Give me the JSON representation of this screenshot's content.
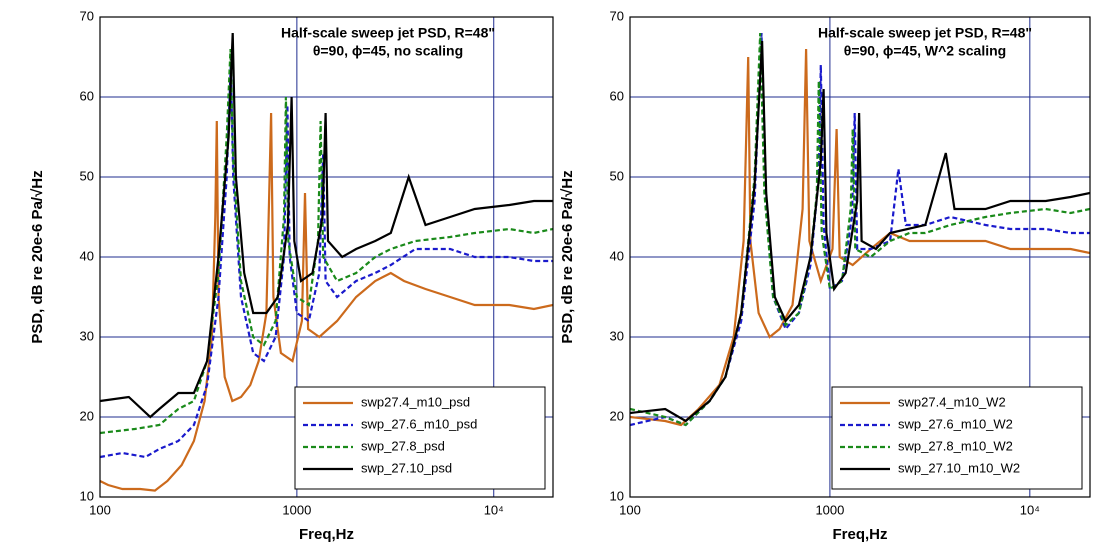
{
  "chart_data": [
    {
      "type": "line",
      "title": "Half-scale sweep jet PSD, R=48\"",
      "subtitle": "θ=90, ϕ=45,  no scaling",
      "xlabel": "Freq,Hz",
      "ylabel": "PSD, dB re 20e-6 Pa/√Hz",
      "xscale": "log",
      "grid": true,
      "legend": "lower right",
      "xlim": [
        100,
        20000
      ],
      "ylim": [
        10,
        70
      ],
      "xticks": [
        100,
        1000,
        {
          "value": 10000,
          "label": "10⁴"
        }
      ],
      "yticks": [
        10,
        20,
        30,
        40,
        50,
        60,
        70
      ],
      "series": [
        {
          "name": "swp27.4_m10_psd",
          "color": "#cc6a1c",
          "dashed": false,
          "x": [
            100,
            110,
            130,
            160,
            190,
            220,
            260,
            300,
            340,
            370,
            385,
            392,
            400,
            430,
            470,
            520,
            580,
            640,
            700,
            740,
            760,
            830,
            950,
            1060,
            1100,
            1140,
            1300,
            1600,
            2000,
            2500,
            3000,
            3500,
            4500,
            6000,
            8000,
            12000,
            16000,
            20000
          ],
          "values": [
            12,
            11.5,
            11,
            11,
            10.8,
            12,
            14,
            17,
            22,
            30,
            45,
            57,
            35,
            25,
            22,
            22.5,
            24,
            27,
            33,
            58,
            35,
            28,
            27,
            32,
            48,
            31,
            30,
            32,
            35,
            37,
            38,
            37,
            36,
            35,
            34,
            34,
            33.5,
            34
          ]
        },
        {
          "name": "swp_27.6_m10_psd",
          "color": "#1a1acc",
          "dashed": true,
          "x": [
            100,
            130,
            170,
            200,
            250,
            300,
            350,
            400,
            440,
            462,
            475,
            520,
            600,
            680,
            780,
            860,
            895,
            920,
            1000,
            1150,
            1300,
            1360,
            1400,
            1600,
            2000,
            2500,
            3000,
            4000,
            6000,
            8000,
            12000,
            16000,
            20000
          ],
          "values": [
            15,
            15.5,
            15,
            16,
            17,
            19,
            24,
            35,
            50,
            64,
            50,
            35,
            28,
            27,
            30,
            40,
            59,
            40,
            33,
            32,
            38,
            53,
            37,
            35,
            37,
            38,
            39,
            41,
            41,
            40,
            40,
            39.5,
            39.5
          ]
        },
        {
          "name": "swp_27.8_psd",
          "color": "#1a8a1a",
          "dashed": true,
          "x": [
            100,
            150,
            200,
            250,
            300,
            350,
            400,
            440,
            460,
            475,
            520,
            600,
            680,
            780,
            860,
            880,
            905,
            1000,
            1150,
            1280,
            1320,
            1360,
            1600,
            2000,
            2500,
            3000,
            4000,
            6000,
            8000,
            12000,
            16000,
            20000
          ],
          "values": [
            18,
            18.5,
            19,
            21,
            22,
            27,
            38,
            55,
            66,
            52,
            37,
            30,
            29,
            32,
            45,
            60,
            42,
            35,
            34,
            42,
            57,
            40,
            37,
            38,
            40,
            41,
            42,
            42.5,
            43,
            43.5,
            43,
            43.5
          ]
        },
        {
          "name": "swp_27.10_psd",
          "color": "#000000",
          "dashed": false,
          "x": [
            100,
            140,
            180,
            200,
            250,
            300,
            350,
            400,
            450,
            472,
            490,
            540,
            600,
            700,
            800,
            900,
            940,
            970,
            1050,
            1200,
            1350,
            1400,
            1440,
            1700,
            2000,
            2500,
            3000,
            3700,
            4500,
            6000,
            8000,
            12000,
            16000,
            20000
          ],
          "values": [
            22,
            22.5,
            20,
            21,
            23,
            23,
            27,
            40,
            55,
            68,
            50,
            38,
            33,
            33,
            35,
            44,
            60,
            42,
            37,
            38,
            45,
            58,
            42,
            40,
            41,
            42,
            43,
            50,
            44,
            45,
            46,
            46.5,
            47,
            47
          ]
        }
      ]
    },
    {
      "type": "line",
      "title": "Half-scale sweep jet PSD, R=48\"",
      "subtitle": "θ=90, ϕ=45,  W^2 scaling",
      "xlabel": "Freq,Hz",
      "ylabel": "PSD, dB re 20e-6 Pa/√Hz",
      "xscale": "log",
      "grid": true,
      "legend": "lower right",
      "xlim": [
        100,
        20000
      ],
      "ylim": [
        10,
        70
      ],
      "xticks": [
        100,
        1000,
        {
          "value": 10000,
          "label": "10⁴"
        }
      ],
      "yticks": [
        10,
        20,
        30,
        40,
        50,
        60,
        70
      ],
      "series": [
        {
          "name": "swp27.4_m10_W2",
          "color": "#cc6a1c",
          "dashed": false,
          "x": [
            100,
            150,
            180,
            220,
            280,
            330,
            370,
            390,
            400,
            440,
            500,
            560,
            650,
            730,
            760,
            790,
            900,
            1030,
            1080,
            1120,
            1300,
            1600,
            2000,
            2500,
            3000,
            4000,
            6000,
            8000,
            12000,
            16000,
            20000
          ],
          "values": [
            20,
            19.5,
            19,
            21,
            24,
            30,
            42,
            65,
            42,
            33,
            30,
            31,
            34,
            46,
            66,
            42,
            37,
            41,
            56,
            40,
            39,
            41,
            43,
            42,
            42,
            42,
            42,
            41,
            41,
            41,
            40.5
          ]
        },
        {
          "name": "swp_27.6_m10_W2",
          "color": "#1a1acc",
          "dashed": true,
          "x": [
            100,
            150,
            190,
            250,
            300,
            360,
            420,
            455,
            475,
            520,
            600,
            700,
            800,
            880,
            900,
            930,
            1000,
            1150,
            1290,
            1330,
            1370,
            1600,
            2000,
            2200,
            2400,
            3000,
            4000,
            6000,
            8000,
            12000,
            16000,
            20000
          ],
          "values": [
            19,
            20,
            19,
            22,
            25,
            32,
            47,
            68,
            48,
            35,
            31,
            33,
            39,
            50,
            64,
            44,
            36,
            37,
            45,
            58,
            41,
            41,
            42,
            51,
            44,
            44,
            45,
            44,
            43.5,
            43.5,
            43,
            43
          ]
        },
        {
          "name": "swp_27.8_m10_W2",
          "color": "#1a8a1a",
          "dashed": true,
          "x": [
            100,
            150,
            190,
            250,
            300,
            360,
            420,
            448,
            470,
            520,
            600,
            700,
            800,
            860,
            880,
            910,
            1000,
            1150,
            1270,
            1300,
            1340,
            1600,
            2000,
            2500,
            3000,
            4000,
            6000,
            8000,
            12000,
            16000,
            20000
          ],
          "values": [
            21,
            20,
            19,
            22,
            25,
            33,
            50,
            68,
            48,
            35,
            31.5,
            33,
            40,
            48,
            62,
            43,
            36,
            37,
            46,
            56,
            41,
            40,
            42,
            43,
            43,
            44,
            45,
            45.5,
            46,
            45.5,
            46
          ]
        },
        {
          "name": "swp_27.10_m10_W2",
          "color": "#000000",
          "dashed": false,
          "x": [
            100,
            150,
            190,
            250,
            300,
            360,
            420,
            458,
            480,
            530,
            600,
            700,
            800,
            900,
            930,
            960,
            1050,
            1200,
            1370,
            1400,
            1440,
            1700,
            2000,
            3000,
            3800,
            4200,
            6000,
            8000,
            12000,
            16000,
            20000
          ],
          "values": [
            20.5,
            21,
            19.5,
            22,
            25,
            33,
            49,
            67,
            48,
            35,
            32,
            34,
            40,
            52,
            61,
            43,
            36,
            38,
            47,
            58,
            42,
            41,
            43,
            44,
            53,
            46,
            46,
            47,
            47,
            47.5,
            48
          ]
        }
      ]
    }
  ]
}
